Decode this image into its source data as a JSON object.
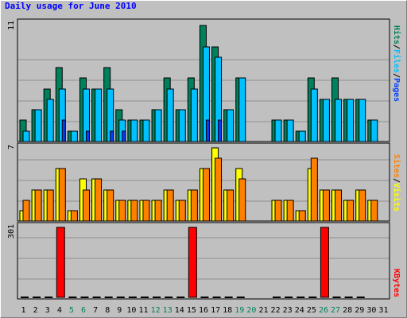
{
  "title": "Daily usage for June 2010",
  "colors": {
    "background": "#c0c0c0",
    "title": "#0000ff",
    "hits": "#00805c",
    "files": "#00c0ff",
    "pages": "#0040ff",
    "visits": "#ffff00",
    "sites": "#ff8000",
    "kbytes": "#ff0000",
    "weekend_day_label": "#00805c"
  },
  "chart_data": [
    {
      "type": "bar",
      "panel": "hits-files-pages",
      "ymax_label": "11",
      "ylim": [
        0,
        11
      ],
      "legend": [
        {
          "name": "Pages",
          "color": "#0040ff"
        },
        {
          "name": "Files",
          "color": "#00c0ff"
        },
        {
          "name": "Hits",
          "color": "#00805c"
        }
      ],
      "legend_separator": "/",
      "categories": [
        "1",
        "2",
        "3",
        "4",
        "5",
        "6",
        "7",
        "8",
        "9",
        "10",
        "11",
        "12",
        "13",
        "14",
        "15",
        "16",
        "17",
        "18",
        "19",
        "20",
        "21",
        "22",
        "23",
        "24",
        "25",
        "26",
        "27",
        "28",
        "29",
        "30",
        "31"
      ],
      "series": [
        {
          "name": "Hits",
          "values": [
            2,
            3,
            5,
            7,
            1,
            6,
            5,
            7,
            3,
            2,
            2,
            3,
            6,
            3,
            6,
            11,
            9,
            3,
            6,
            0,
            0,
            2,
            2,
            1,
            6,
            4,
            6,
            4,
            4,
            2,
            0
          ]
        },
        {
          "name": "Files",
          "values": [
            1,
            3,
            4,
            5,
            1,
            5,
            5,
            5,
            2,
            2,
            2,
            3,
            5,
            3,
            5,
            9,
            8,
            3,
            6,
            0,
            0,
            2,
            2,
            1,
            5,
            4,
            4,
            4,
            4,
            2,
            0
          ]
        },
        {
          "name": "Pages",
          "values": [
            0,
            0,
            0,
            2,
            0,
            1,
            0,
            1,
            1,
            0,
            0,
            0,
            0,
            0,
            0,
            2,
            2,
            0,
            0,
            0,
            0,
            0,
            0,
            0,
            0,
            0,
            0,
            0,
            0,
            0,
            0
          ]
        }
      ]
    },
    {
      "type": "bar",
      "panel": "visits-sites",
      "ymax_label": "7",
      "ylim": [
        0,
        7
      ],
      "legend": [
        {
          "name": "Sites",
          "color": "#ff8000"
        },
        {
          "name": "Visits",
          "color": "#ffff00"
        }
      ],
      "legend_separator": "/",
      "categories": [
        "1",
        "2",
        "3",
        "4",
        "5",
        "6",
        "7",
        "8",
        "9",
        "10",
        "11",
        "12",
        "13",
        "14",
        "15",
        "16",
        "17",
        "18",
        "19",
        "20",
        "21",
        "22",
        "23",
        "24",
        "25",
        "26",
        "27",
        "28",
        "29",
        "30",
        "31"
      ],
      "series": [
        {
          "name": "Visits",
          "values": [
            1,
            3,
            3,
            5,
            1,
            4,
            4,
            3,
            2,
            2,
            2,
            2,
            3,
            2,
            3,
            5,
            7,
            3,
            5,
            0,
            0,
            2,
            2,
            1,
            5,
            3,
            3,
            2,
            3,
            2,
            0
          ]
        },
        {
          "name": "Sites",
          "values": [
            2,
            3,
            3,
            5,
            1,
            3,
            4,
            3,
            2,
            2,
            2,
            2,
            3,
            2,
            3,
            5,
            6,
            3,
            4,
            0,
            0,
            2,
            2,
            1,
            6,
            3,
            3,
            2,
            3,
            2,
            0
          ]
        }
      ]
    },
    {
      "type": "bar",
      "panel": "kbytes",
      "ymax_label": "301",
      "ylim": [
        0,
        301
      ],
      "legend": [
        {
          "name": "KBytes",
          "color": "#ff0000"
        }
      ],
      "categories": [
        "1",
        "2",
        "3",
        "4",
        "5",
        "6",
        "7",
        "8",
        "9",
        "10",
        "11",
        "12",
        "13",
        "14",
        "15",
        "16",
        "17",
        "18",
        "19",
        "20",
        "21",
        "22",
        "23",
        "24",
        "25",
        "26",
        "27",
        "28",
        "29",
        "30",
        "31"
      ],
      "series": [
        {
          "name": "KBytes",
          "values": [
            0,
            0,
            0,
            301,
            0,
            0,
            0,
            0,
            0,
            0,
            0,
            0,
            0,
            0,
            301,
            0,
            0,
            0,
            0,
            0,
            0,
            0,
            0,
            0,
            0,
            301,
            0,
            0,
            0,
            0,
            0
          ]
        }
      ],
      "weekend_days": [
        "5",
        "6",
        "12",
        "13",
        "19",
        "20",
        "26",
        "27"
      ]
    }
  ]
}
